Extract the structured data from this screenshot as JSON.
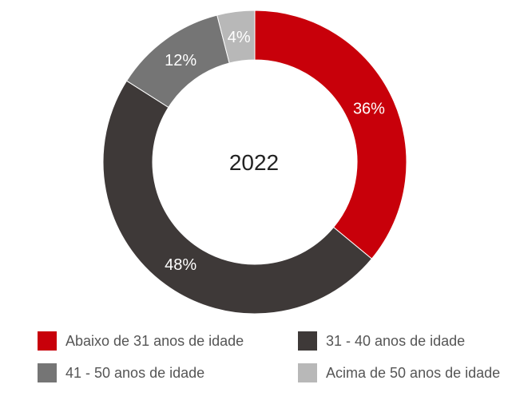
{
  "chart_data": {
    "type": "pie",
    "variant": "donut",
    "title": "2022",
    "categories": [
      "Abaixo de 31 anos de idade",
      "31 - 40 anos de idade",
      "41 - 50 anos de idade",
      "Acima de 50 anos de idade"
    ],
    "values": [
      36,
      48,
      12,
      4
    ],
    "data_labels": [
      "36%",
      "48%",
      "12%",
      "4%"
    ],
    "colors": [
      "#C8000A",
      "#3E3938",
      "#757575",
      "#B8B8B8"
    ],
    "legend_position": "bottom"
  }
}
